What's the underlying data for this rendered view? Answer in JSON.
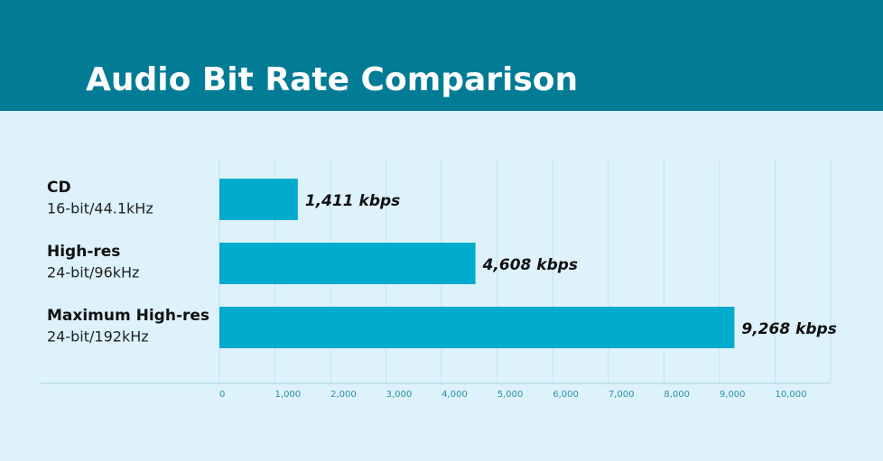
{
  "chart_data": {
    "type": "bar",
    "orientation": "horizontal",
    "title": "Audio Bit Rate Comparison",
    "categories": [
      "CD",
      "High-res",
      "Maximum High-res"
    ],
    "category_details": [
      "16-bit/44.1kHz",
      "24-bit/96kHz",
      "24-bit/192kHz"
    ],
    "values": [
      1411,
      4608,
      9268
    ],
    "value_labels": [
      "1,411 kbps",
      "4,608 kbps",
      "9,268 kbps"
    ],
    "color": "#00abcd",
    "xlim": [
      0,
      11000
    ],
    "xticks": [
      0,
      {
        "value": 1000,
        "label": "1,000"
      },
      {
        "value": 2000,
        "label": "2,000"
      },
      {
        "value": 3000,
        "label": "3,000"
      },
      {
        "value": 4000,
        "label": "4,000"
      },
      {
        "value": 5000,
        "label": "5,000"
      },
      {
        "value": 6000,
        "label": "6,000"
      },
      {
        "value": 7000,
        "label": "7,000"
      },
      {
        "value": 8000,
        "label": "8,000"
      },
      {
        "value": 9000,
        "label": "9,000"
      },
      {
        "value": 10000,
        "label": "10,000"
      }
    ],
    "grid": true
  }
}
